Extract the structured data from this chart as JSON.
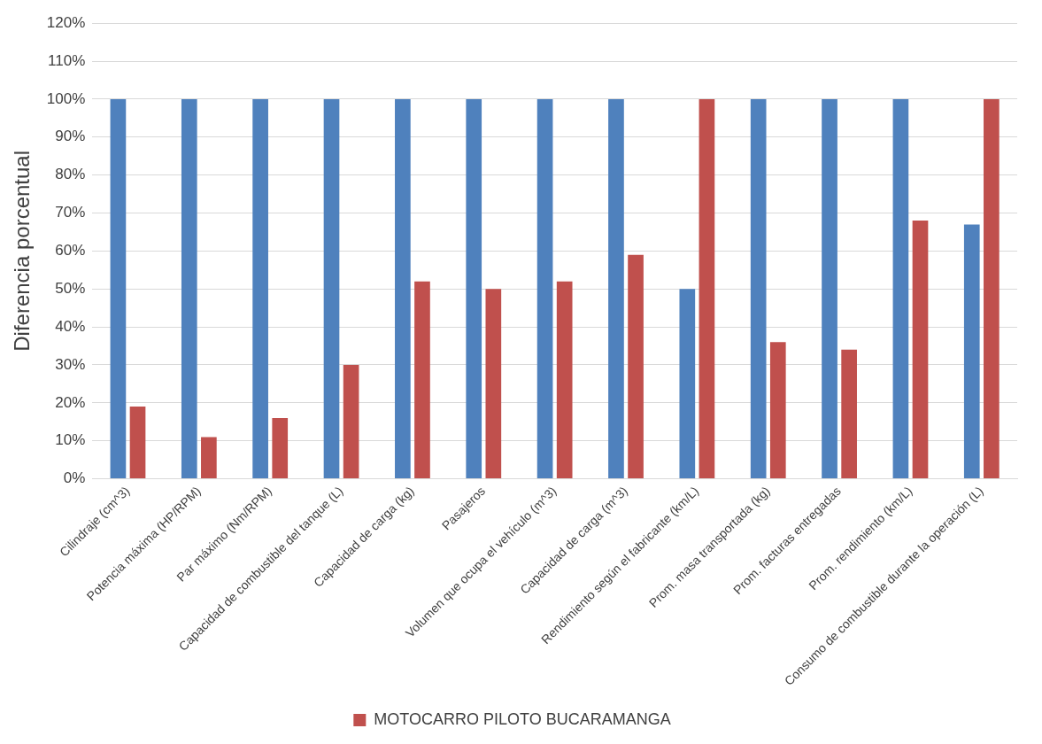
{
  "chart_data": {
    "type": "bar",
    "ylabel": "Diferencia porcentual",
    "categories": [
      "Cilindraje (cm^3)",
      "Potencia máxima (HP/RPM)",
      "Par máximo (Nm/RPM)",
      "Capacidad de combustible del tanque (L)",
      "Capacidad de carga (kg)",
      "Pasajeros",
      "Volumen que ocupa el vehículo (m^3)",
      "Capacidad de carga (m^3)",
      "Rendimiento según el fabricante (km/L)",
      "Prom. masa transportada (kg)",
      "Prom. facturas entregadas",
      "Prom. rendimiento (km/L)",
      "Consumo de combustible durante la operación (L)"
    ],
    "series": [
      {
        "color": "#4f81bd",
        "values": [
          100,
          100,
          100,
          100,
          100,
          100,
          100,
          100,
          50,
          100,
          100,
          100,
          67
        ]
      },
      {
        "name": "MOTOCARRO PILOTO BUCARAMANGA",
        "color": "#c0504d",
        "values": [
          19,
          11,
          16,
          30,
          52,
          50,
          52,
          59,
          100,
          36,
          34,
          68,
          100
        ]
      }
    ],
    "ylim": [
      0,
      120
    ],
    "yticks": [
      {
        "value": 0,
        "label": "0%"
      },
      {
        "value": 10,
        "label": "10%"
      },
      {
        "value": 20,
        "label": "20%"
      },
      {
        "value": 30,
        "label": "30%"
      },
      {
        "value": 40,
        "label": "40%"
      },
      {
        "value": 50,
        "label": "50%"
      },
      {
        "value": 60,
        "label": "60%"
      },
      {
        "value": 70,
        "label": "70%"
      },
      {
        "value": 80,
        "label": "80%"
      },
      {
        "value": 90,
        "label": "90%"
      },
      {
        "value": 100,
        "label": "100%"
      },
      {
        "value": 110,
        "label": "110%"
      },
      {
        "value": 120,
        "label": "120%"
      }
    ],
    "grid": "y",
    "legend": "bottom"
  }
}
